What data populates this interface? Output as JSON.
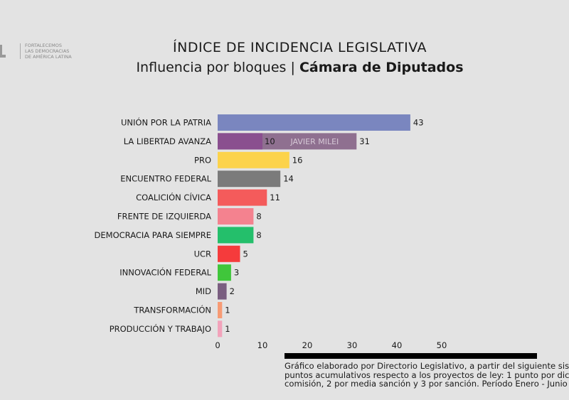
{
  "logo": {
    "lines": [
      "FORTALECEMOS",
      "LAS DEMOCRACIAS",
      "DE AMÉRICA LATINA"
    ]
  },
  "header": {
    "title": "ÍNDICE DE INCIDENCIA LEGISLATIVA",
    "subtitle_regular": "Influencia por bloques",
    "subtitle_sep": "|",
    "subtitle_bold": "Cámara de Diputados"
  },
  "chart_data": {
    "type": "bar",
    "orientation": "horizontal",
    "categories": [
      "UNIÓN POR LA PATRIA",
      "LA LIBERTAD AVANZA",
      "PRO",
      "ENCUENTRO FEDERAL",
      "COALICIÓN CÍVICA",
      "FRENTE DE IZQUIERDA",
      "DEMOCRACIA PARA SIEMPRE",
      "UCR",
      "INNOVACIÓN FEDERAL",
      "MID",
      "TRANSFORMACIÓN",
      "PRODUCCIÓN Y TRABAJO"
    ],
    "values": [
      43,
      31,
      16,
      14,
      11,
      8,
      8,
      5,
      3,
      2,
      1,
      1
    ],
    "colors": [
      "#7a86bf",
      "#8f7090",
      "#fcd34b",
      "#7b7b7b",
      "#f45b5b",
      "#f4828f",
      "#24bf6b",
      "#f53b3c",
      "#40c63b",
      "#7a5e80",
      "#f79b74",
      "#f2a3bb"
    ],
    "sub_segment": {
      "category": "LA LIBERTAD AVANZA",
      "value": 10,
      "color": "#8a4f8f",
      "remainder_label": "JAVIER MILEI"
    },
    "xticks": [
      0,
      10,
      20,
      30,
      40,
      50
    ],
    "xlim": [
      0,
      50
    ],
    "grid": false
  },
  "footnote": [
    "Gráfico elaborado por Directorio Legislativo, a partir del siguiente sis",
    "puntos acumulativos respecto a los proyectos de ley: 1 punto por dic",
    "comisión, 2 por media sanción y 3 por sanción. Período Enero - Junio"
  ]
}
